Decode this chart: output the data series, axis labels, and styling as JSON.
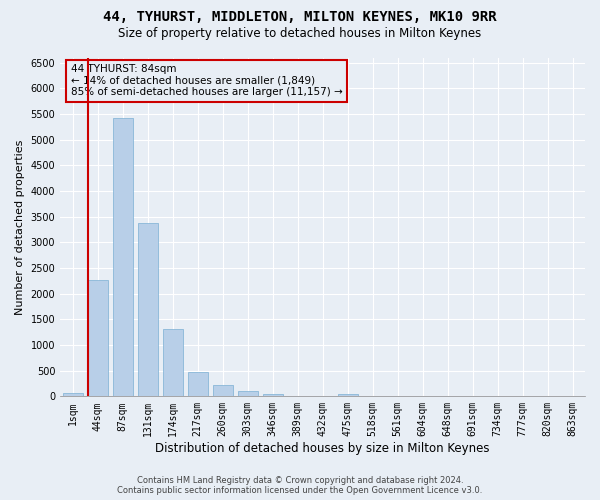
{
  "title": "44, TYHURST, MIDDLETON, MILTON KEYNES, MK10 9RR",
  "subtitle": "Size of property relative to detached houses in Milton Keynes",
  "xlabel": "Distribution of detached houses by size in Milton Keynes",
  "ylabel": "Number of detached properties",
  "footer_line1": "Contains HM Land Registry data © Crown copyright and database right 2024.",
  "footer_line2": "Contains public sector information licensed under the Open Government Licence v3.0.",
  "annotation_title": "44 TYHURST: 84sqm",
  "annotation_line1": "← 14% of detached houses are smaller (1,849)",
  "annotation_line2": "85% of semi-detached houses are larger (11,157) →",
  "bar_labels": [
    "1sqm",
    "44sqm",
    "87sqm",
    "131sqm",
    "174sqm",
    "217sqm",
    "260sqm",
    "303sqm",
    "346sqm",
    "389sqm",
    "432sqm",
    "475sqm",
    "518sqm",
    "561sqm",
    "604sqm",
    "648sqm",
    "691sqm",
    "734sqm",
    "777sqm",
    "820sqm",
    "863sqm"
  ],
  "bar_values": [
    70,
    2270,
    5430,
    3380,
    1310,
    480,
    220,
    100,
    55,
    0,
    0,
    50,
    0,
    0,
    0,
    0,
    0,
    0,
    0,
    0,
    0
  ],
  "bar_color": "#b8cfe8",
  "bar_edge_color": "#7bafd4",
  "marker_bar_index": 1,
  "marker_color": "#cc0000",
  "ylim": [
    0,
    6600
  ],
  "yticks": [
    0,
    500,
    1000,
    1500,
    2000,
    2500,
    3000,
    3500,
    4000,
    4500,
    5000,
    5500,
    6000,
    6500
  ],
  "annotation_box_color": "#cc0000",
  "background_color": "#e8eef5",
  "grid_color": "#ffffff",
  "title_fontsize": 10,
  "subtitle_fontsize": 8.5,
  "ylabel_fontsize": 8,
  "xlabel_fontsize": 8.5,
  "tick_fontsize": 7,
  "footer_fontsize": 6
}
